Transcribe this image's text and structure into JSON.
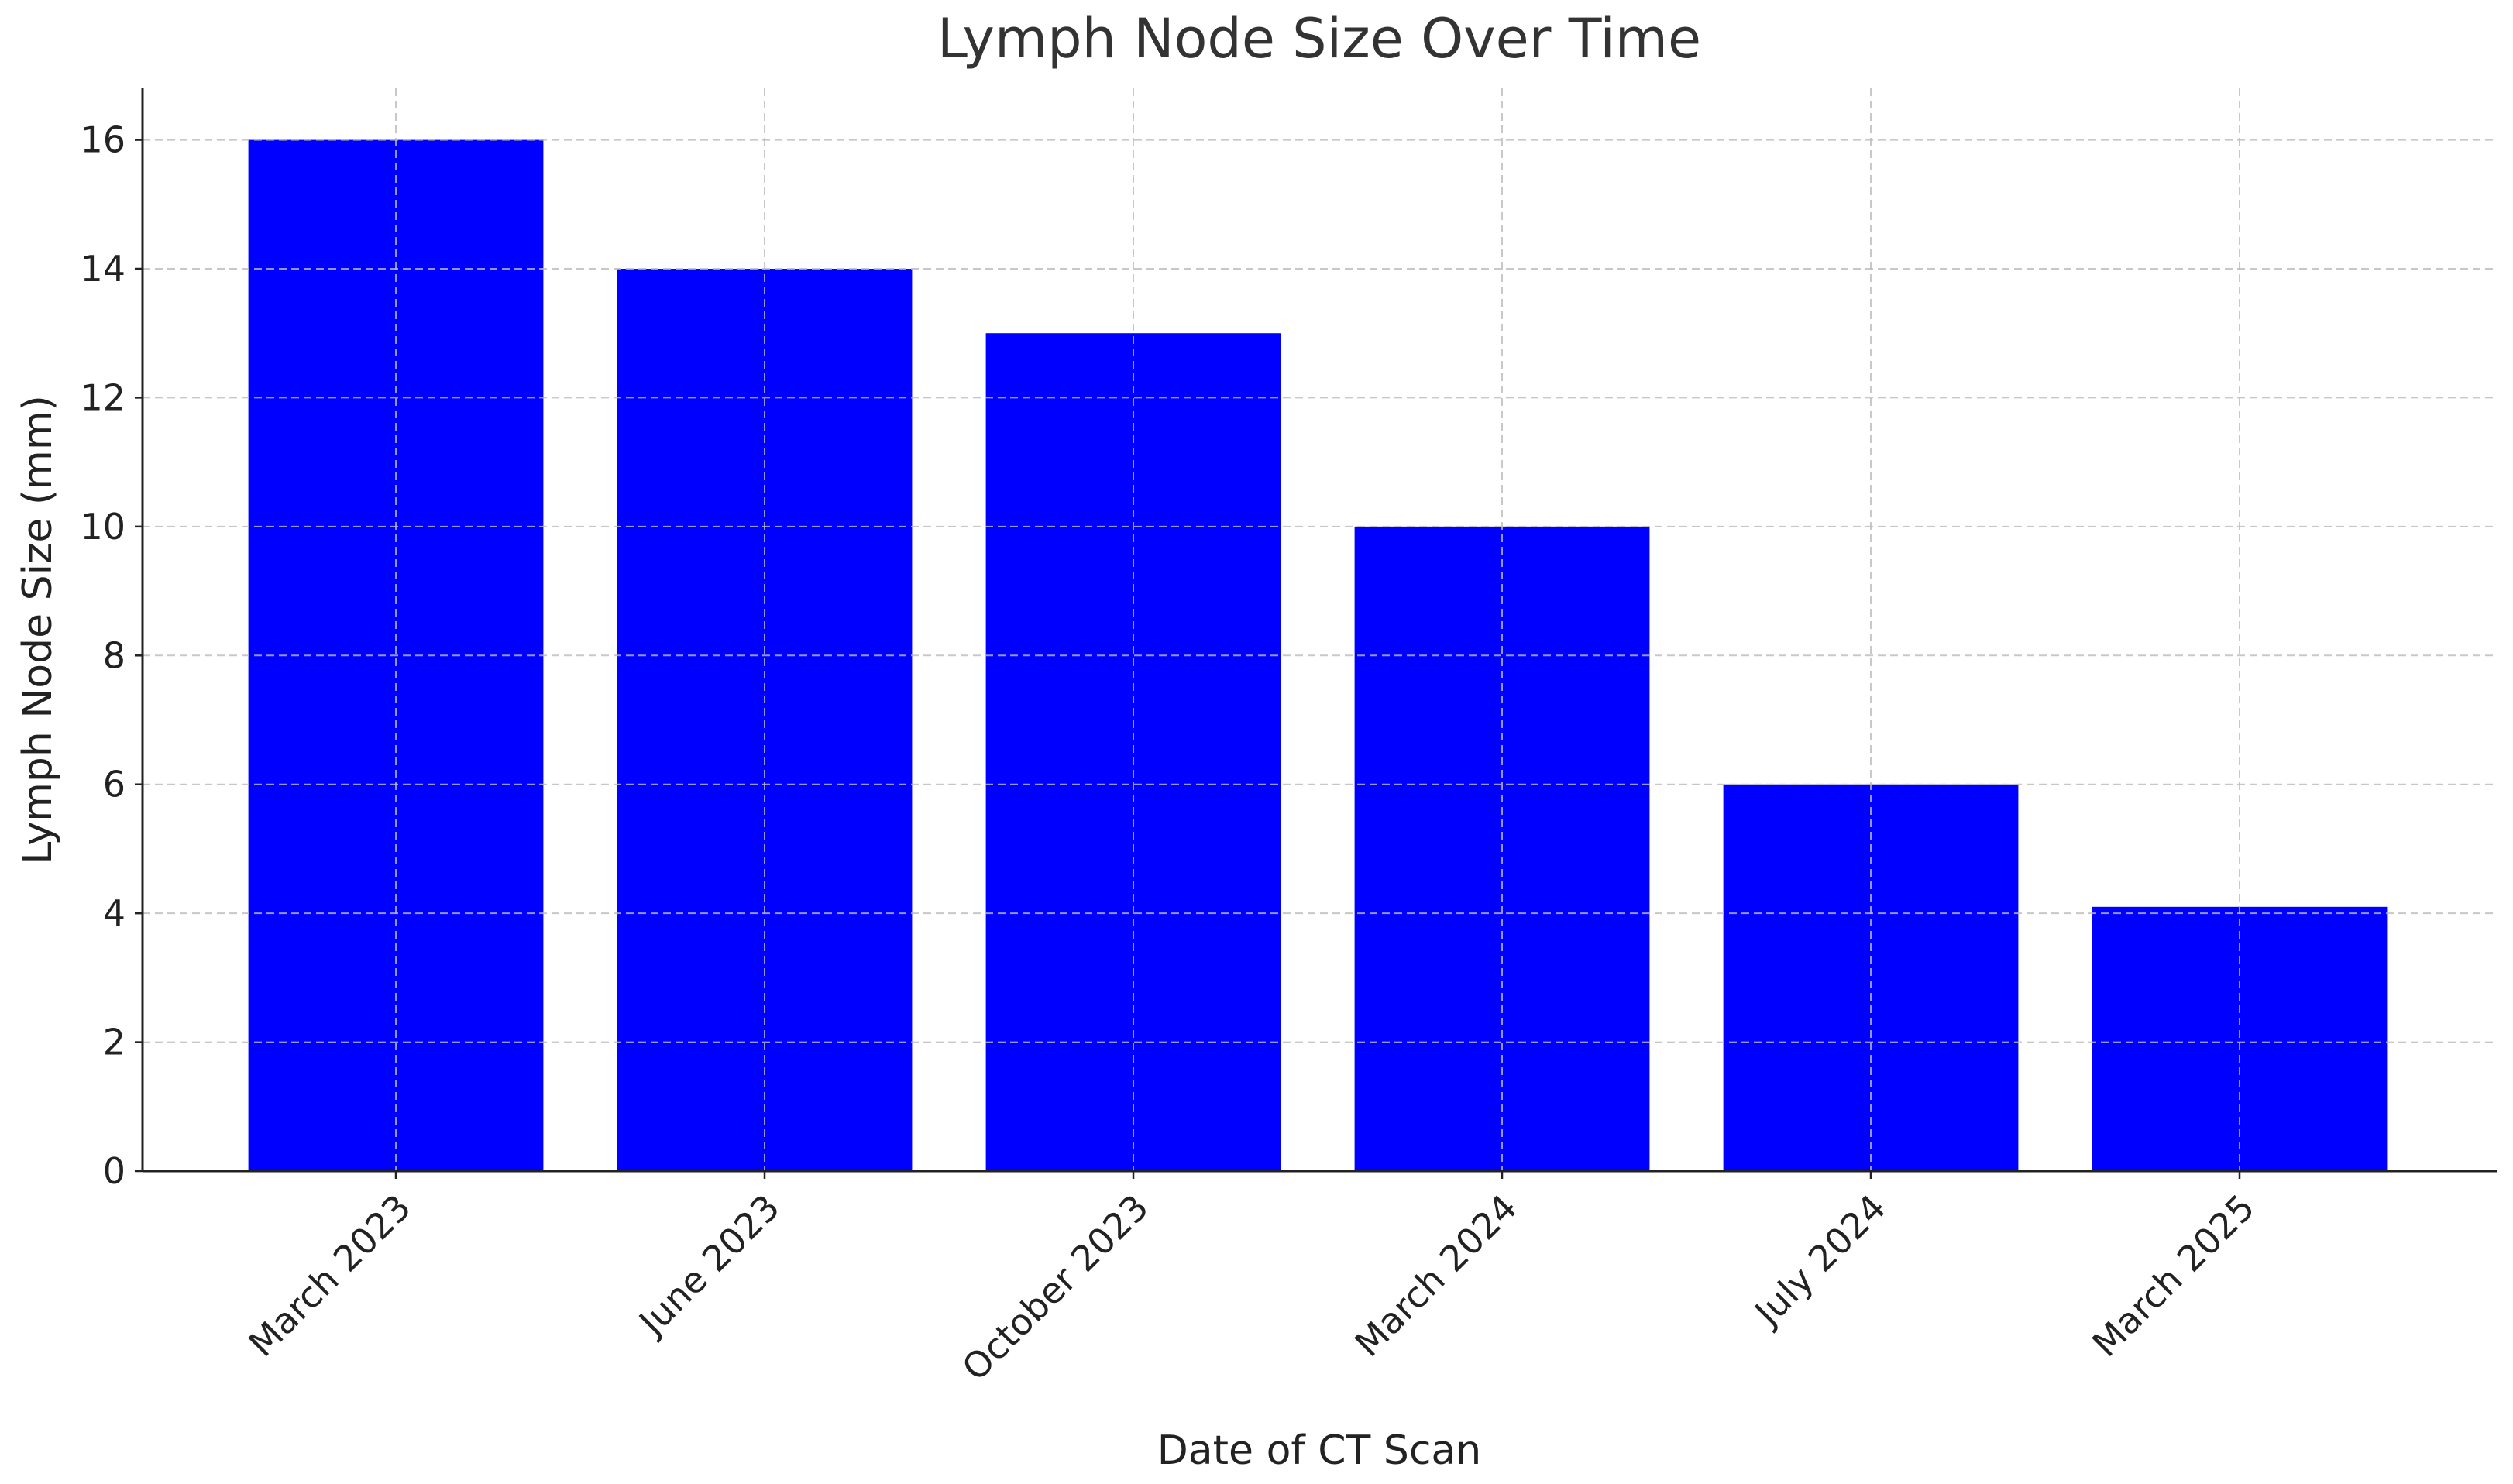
{
  "chart_data": {
    "type": "bar",
    "title": "Lymph Node Size Over Time",
    "x_label": "Date of CT Scan",
    "y_label": "Lymph Node Size (mm)",
    "categories": [
      "March 2023",
      "June 2023",
      "October 2023",
      "March 2024",
      "July 2024",
      "March 2025"
    ],
    "values": [
      16,
      14,
      13,
      10,
      6,
      4.1
    ],
    "color": "#0000ff",
    "ylim": [
      0,
      16.8
    ],
    "yticks": [
      0,
      2,
      4,
      6,
      8,
      10,
      12,
      14,
      16
    ],
    "grid": true
  }
}
